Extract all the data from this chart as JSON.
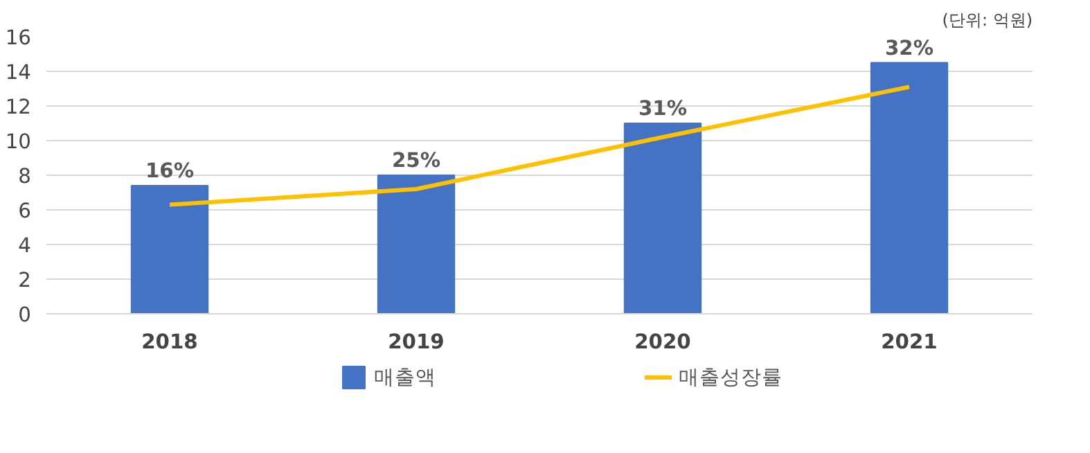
{
  "chart_data": {
    "type": "bar",
    "categories": [
      "2018",
      "2019",
      "2020",
      "2021"
    ],
    "series": [
      {
        "name": "매출액",
        "color": "#4472c4",
        "values": [
          7.4,
          8.0,
          11.0,
          14.5
        ]
      },
      {
        "name": "매출성장률",
        "type": "line",
        "color": "#ffc000",
        "values": [
          6.3,
          7.2,
          10.2,
          13.1
        ]
      }
    ],
    "annotations": [
      "(단위: 억원)",
      {
        "text": "16%",
        "x": "2018",
        "y": 7.4
      },
      {
        "text": "25%",
        "x": "2019",
        "y": 8.0
      },
      {
        "text": "31%",
        "x": "2020",
        "y": 11.0
      },
      {
        "text": "32%",
        "x": "2021",
        "y": 14.5
      }
    ],
    "ylim": [
      0,
      16
    ],
    "yticks": [
      0,
      2,
      4,
      6,
      8,
      10,
      12,
      14,
      16
    ],
    "grid": "y",
    "legend": "bottom",
    "marker": "none",
    "line_style": "solid"
  }
}
